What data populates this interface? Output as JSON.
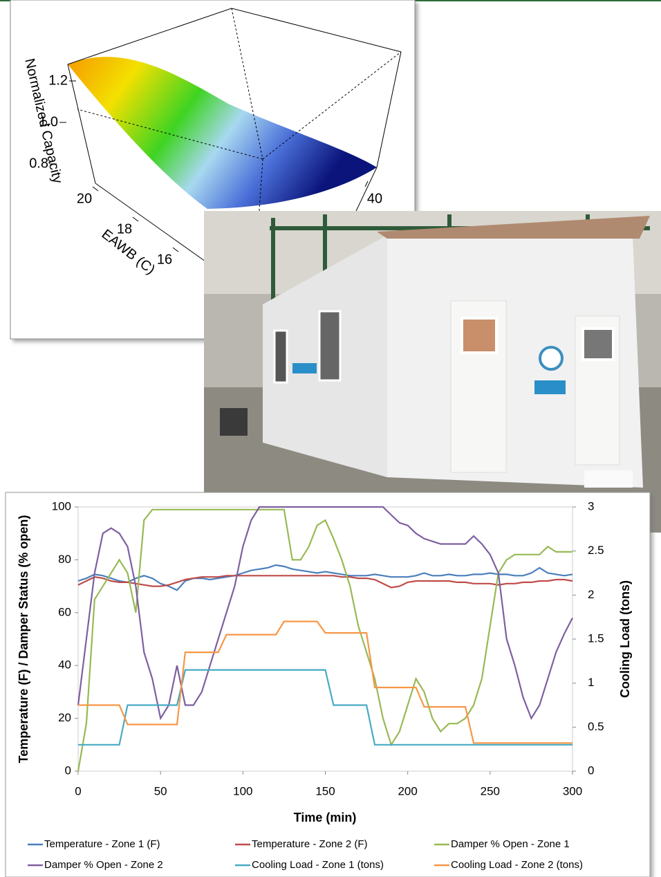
{
  "chart_data": [
    {
      "type": "surface",
      "zlabel": "Normalized Capacity",
      "ylabel": "EAWB (C)",
      "zticks": [
        0.8,
        {
          "value": 1,
          "label": "1.0"
        },
        1.2
      ],
      "yticks": [
        20,
        18,
        16
      ],
      "xticks": [
        40
      ]
    },
    {
      "type": "line",
      "xlabel": "Time (min)",
      "ylabel": "Temperature (F) / Damper Status (% open)",
      "y2label": "Cooling Load (tons)",
      "xlim": [
        0,
        300
      ],
      "xticks": [
        0,
        50,
        100,
        150,
        200,
        250,
        300
      ],
      "ylim": [
        0,
        100
      ],
      "yticks": [
        0,
        20,
        40,
        60,
        80,
        100
      ],
      "y2lim": [
        0,
        3
      ],
      "y2ticks": [
        0,
        0.5,
        1,
        1.5,
        2,
        2.5,
        3
      ],
      "x": [
        0,
        5,
        10,
        15,
        20,
        25,
        30,
        35,
        40,
        45,
        50,
        55,
        60,
        65,
        70,
        75,
        80,
        85,
        90,
        95,
        100,
        105,
        110,
        115,
        120,
        125,
        130,
        135,
        140,
        145,
        150,
        155,
        160,
        165,
        170,
        175,
        180,
        185,
        190,
        195,
        200,
        205,
        210,
        215,
        220,
        225,
        230,
        235,
        240,
        245,
        250,
        255,
        260,
        265,
        270,
        275,
        280,
        285,
        290,
        295,
        300
      ],
      "series": [
        {
          "name": "Temperature - Zone 1 (F)",
          "color": "#4a7ebb",
          "values": [
            72,
            73,
            74.5,
            74,
            73,
            72,
            71.5,
            73,
            74,
            73,
            71,
            70,
            68.5,
            72,
            73,
            73,
            72.5,
            73,
            73.5,
            74,
            75,
            76,
            76.5,
            77,
            78,
            77.5,
            76.5,
            76,
            75.5,
            75,
            75.5,
            75,
            74.5,
            74,
            74,
            74,
            74.5,
            74,
            73.5,
            73.5,
            73.5,
            74,
            75,
            74,
            74,
            74.5,
            74,
            74,
            74.5,
            74.5,
            75,
            74.5,
            74.5,
            74,
            74,
            75,
            77,
            75,
            74.5,
            74,
            74.5
          ]
        },
        {
          "name": "Temperature - Zone 2 (F)",
          "color": "#be4b48",
          "values": [
            70.5,
            72,
            73.5,
            73,
            72,
            71.5,
            71.5,
            71,
            70.5,
            70,
            70,
            70.5,
            71.5,
            72.5,
            73,
            73.5,
            73.5,
            73.5,
            74,
            74,
            74,
            74,
            74,
            74,
            74,
            74,
            74,
            74,
            74,
            74,
            74,
            74,
            73.5,
            73.5,
            73,
            73,
            72.5,
            71,
            69.5,
            70,
            71.5,
            72,
            72,
            72,
            72,
            72,
            71.5,
            71.5,
            71,
            71,
            71,
            70.5,
            71,
            71,
            71.5,
            71.5,
            72,
            72,
            72.5,
            72.5,
            72
          ]
        },
        {
          "name": "Damper % Open - Zone 1",
          "color": "#98b954",
          "values": [
            0,
            18,
            65,
            70,
            75,
            80,
            75,
            60,
            95,
            99,
            99,
            99,
            99,
            99,
            99,
            99,
            99,
            99,
            99,
            99,
            99,
            99,
            99,
            99,
            99,
            99,
            80,
            80,
            85,
            93,
            95,
            88,
            80,
            70,
            55,
            45,
            35,
            20,
            10,
            15,
            25,
            35,
            30,
            20,
            15,
            18,
            18,
            20,
            25,
            35,
            55,
            75,
            80,
            82,
            82,
            82,
            82,
            85,
            83,
            83,
            83
          ]
        },
        {
          "name": "Damper % Open - Zone 2",
          "color": "#7d5fa0",
          "values": [
            25,
            50,
            75,
            90,
            92,
            90,
            85,
            70,
            45,
            35,
            20,
            25,
            40,
            25,
            25,
            30,
            40,
            50,
            60,
            70,
            85,
            95,
            100,
            100,
            100,
            100,
            100,
            100,
            100,
            100,
            100,
            100,
            100,
            100,
            100,
            100,
            100,
            100,
            97,
            94,
            93,
            90,
            88,
            87,
            86,
            86,
            86,
            86,
            89,
            86,
            82,
            75,
            50,
            40,
            28,
            20,
            25,
            35,
            45,
            52,
            58
          ]
        },
        {
          "name": "Cooling Load - Zone 1 (tons)",
          "color": "#46aac5",
          "axis": "y2",
          "values": [
            0.3,
            0.3,
            0.3,
            0.3,
            0.3,
            0.3,
            0.75,
            0.75,
            0.75,
            0.75,
            0.75,
            0.75,
            0.75,
            1.15,
            1.15,
            1.15,
            1.15,
            1.15,
            1.15,
            1.15,
            1.15,
            1.15,
            1.15,
            1.15,
            1.15,
            1.15,
            1.15,
            1.15,
            1.15,
            1.15,
            1.15,
            0.75,
            0.75,
            0.75,
            0.75,
            0.75,
            0.3,
            0.3,
            0.3,
            0.3,
            0.3,
            0.3,
            0.3,
            0.3,
            0.3,
            0.3,
            0.3,
            0.3,
            0.3,
            0.3,
            0.3,
            0.3,
            0.3,
            0.3,
            0.3,
            0.3,
            0.3,
            0.3,
            0.3,
            0.3,
            0.3
          ]
        },
        {
          "name": "Cooling Load - Zone 2 (tons)",
          "color": "#f79646",
          "axis": "y2",
          "values": [
            0.75,
            0.75,
            0.75,
            0.75,
            0.75,
            0.75,
            0.53,
            0.53,
            0.53,
            0.53,
            0.53,
            0.53,
            0.53,
            1.35,
            1.35,
            1.35,
            1.35,
            1.35,
            1.55,
            1.55,
            1.55,
            1.55,
            1.55,
            1.55,
            1.55,
            1.7,
            1.7,
            1.7,
            1.7,
            1.7,
            1.57,
            1.57,
            1.57,
            1.57,
            1.57,
            1.57,
            0.95,
            0.95,
            0.95,
            0.95,
            0.95,
            0.95,
            0.73,
            0.73,
            0.73,
            0.73,
            0.73,
            0.73,
            0.32,
            0.32,
            0.32,
            0.32,
            0.32,
            0.32,
            0.32,
            0.32,
            0.32,
            0.32,
            0.32,
            0.32,
            0.32
          ]
        }
      ]
    }
  ]
}
